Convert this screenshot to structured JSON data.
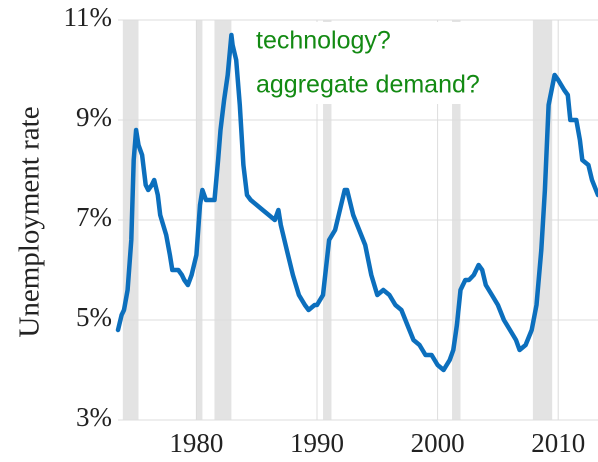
{
  "chart_data": {
    "type": "line",
    "ylabel": "Unemployment rate",
    "annotations": [
      "technology?",
      "aggregate demand?"
    ],
    "annotation_color": "#138a13",
    "xlim": [
      1973.5,
      2013.3
    ],
    "xticks": [
      1980,
      1990,
      2000,
      2010
    ],
    "ylim": [
      3,
      11
    ],
    "yticks": [
      {
        "value": 3,
        "label": "3%"
      },
      {
        "value": 5,
        "label": "5%"
      },
      {
        "value": 7,
        "label": "7%"
      },
      {
        "value": 9,
        "label": "9%"
      },
      {
        "value": 11,
        "label": "11%"
      }
    ],
    "grid": true,
    "recession_color": "#e3e3e3",
    "recessions": [
      [
        1973.9,
        1975.2
      ],
      [
        1980.0,
        1980.5
      ],
      [
        1981.5,
        1982.9
      ],
      [
        1990.5,
        1991.2
      ],
      [
        2001.2,
        2001.9
      ],
      [
        2007.9,
        2009.5
      ]
    ],
    "series": [
      {
        "color": "#0c6fbd",
        "x": [
          1973.5,
          1973.8,
          1974.0,
          1974.3,
          1974.6,
          1974.8,
          1975.0,
          1975.2,
          1975.5,
          1975.8,
          1976.0,
          1976.3,
          1976.5,
          1976.8,
          1977.0,
          1977.5,
          1977.8,
          1978.0,
          1978.5,
          1978.8,
          1979.0,
          1979.3,
          1979.6,
          1980.0,
          1980.3,
          1980.5,
          1980.8,
          1981.0,
          1981.5,
          1981.8,
          1982.0,
          1982.3,
          1982.6,
          1982.9,
          1983.0,
          1983.3,
          1983.6,
          1983.9,
          1984.2,
          1984.5,
          1985.0,
          1985.5,
          1986.0,
          1986.5,
          1986.8,
          1987.0,
          1987.5,
          1988.0,
          1988.5,
          1989.0,
          1989.3,
          1989.8,
          1990.0,
          1990.5,
          1991.0,
          1991.5,
          1992.0,
          1992.3,
          1992.5,
          1993.0,
          1993.5,
          1994.0,
          1994.5,
          1995.0,
          1995.5,
          1996.0,
          1996.5,
          1997.0,
          1997.5,
          1998.0,
          1998.5,
          1999.0,
          1999.5,
          2000.0,
          2000.5,
          2001.0,
          2001.3,
          2001.6,
          2001.9,
          2002.3,
          2002.6,
          2003.0,
          2003.4,
          2003.7,
          2004.0,
          2004.5,
          2005.0,
          2005.5,
          2006.0,
          2006.5,
          2006.8,
          2007.3,
          2007.8,
          2008.2,
          2008.6,
          2008.9,
          2009.2,
          2009.7,
          2010.0,
          2010.5,
          2010.8,
          2011.0,
          2011.5,
          2011.8,
          2012.0,
          2012.5,
          2012.8,
          2013.3
        ],
        "values": [
          4.8,
          5.1,
          5.2,
          5.6,
          6.6,
          8.2,
          8.8,
          8.5,
          8.3,
          7.7,
          7.6,
          7.7,
          7.8,
          7.5,
          7.1,
          6.7,
          6.3,
          6.0,
          6.0,
          5.9,
          5.8,
          5.7,
          5.9,
          6.3,
          7.3,
          7.6,
          7.4,
          7.4,
          7.4,
          8.2,
          8.8,
          9.4,
          9.9,
          10.7,
          10.5,
          10.2,
          9.3,
          8.1,
          7.5,
          7.4,
          7.3,
          7.2,
          7.1,
          7.0,
          7.2,
          6.9,
          6.4,
          5.9,
          5.5,
          5.3,
          5.2,
          5.3,
          5.3,
          5.5,
          6.6,
          6.8,
          7.3,
          7.6,
          7.6,
          7.1,
          6.8,
          6.5,
          5.9,
          5.5,
          5.6,
          5.5,
          5.3,
          5.2,
          4.9,
          4.6,
          4.5,
          4.3,
          4.3,
          4.1,
          4.0,
          4.2,
          4.4,
          4.9,
          5.6,
          5.8,
          5.8,
          5.9,
          6.1,
          6.0,
          5.7,
          5.5,
          5.3,
          5.0,
          4.8,
          4.6,
          4.4,
          4.5,
          4.8,
          5.3,
          6.4,
          7.6,
          9.3,
          9.9,
          9.8,
          9.6,
          9.5,
          9.0,
          9.0,
          8.6,
          8.2,
          8.1,
          7.8,
          7.5
        ]
      }
    ]
  }
}
